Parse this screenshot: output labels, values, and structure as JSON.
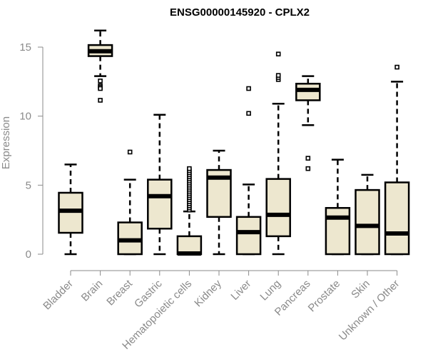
{
  "chart_data": {
    "type": "boxplot",
    "title": "ENSG00000145920 - CPLX2",
    "xlabel": "",
    "ylabel": "Expression",
    "ylim": [
      0,
      16.5
    ],
    "yticks": [
      0,
      5,
      10,
      15
    ],
    "grid": false,
    "legend": "none",
    "box_fill": "#ede7cf",
    "box_stroke": "#000000",
    "categories": [
      "Bladder",
      "Brain",
      "Breast",
      "Gastric",
      "Hematopoietic cells",
      "Kidney",
      "Liver",
      "Lung",
      "Pancreas",
      "Prostate",
      "Skin",
      "Unknown / Other"
    ],
    "boxes": [
      {
        "name": "Bladder",
        "whisker_low": 0,
        "q1": 1.55,
        "median": 3.15,
        "q3": 4.45,
        "whisker_high": 6.5,
        "outliers": []
      },
      {
        "name": "Brain",
        "whisker_low": 12.9,
        "q1": 14.35,
        "median": 14.7,
        "q3": 15.15,
        "whisker_high": 16.2,
        "outliers": [
          12.55,
          12.2,
          12.1,
          12.0,
          11.15
        ]
      },
      {
        "name": "Breast",
        "whisker_low": 0,
        "q1": 0,
        "median": 1.0,
        "q3": 2.3,
        "whisker_high": 5.4,
        "outliers": [
          7.4
        ]
      },
      {
        "name": "Gastric",
        "whisker_low": 0,
        "q1": 1.85,
        "median": 4.2,
        "q3": 5.4,
        "whisker_high": 10.1,
        "outliers": []
      },
      {
        "name": "Hematopoietic cells",
        "whisker_low": 0,
        "q1": 0,
        "median": 0.05,
        "q3": 1.3,
        "whisker_high": 3.1,
        "outliers": [
          3.2,
          3.35,
          3.5,
          3.65,
          3.8,
          3.95,
          4.1,
          4.25,
          4.4,
          4.55,
          4.7,
          4.85,
          5.0,
          5.15,
          5.3,
          5.45,
          5.6,
          5.75,
          5.9,
          6.05,
          6.2
        ]
      },
      {
        "name": "Kidney",
        "whisker_low": 0,
        "q1": 2.7,
        "median": 5.55,
        "q3": 6.1,
        "whisker_high": 7.5,
        "outliers": []
      },
      {
        "name": "Liver",
        "whisker_low": 0,
        "q1": 0,
        "median": 1.6,
        "q3": 2.7,
        "whisker_high": 5.05,
        "outliers": [
          10.2,
          12.0
        ]
      },
      {
        "name": "Lung",
        "whisker_low": 0,
        "q1": 1.3,
        "median": 2.85,
        "q3": 5.45,
        "whisker_high": 10.9,
        "outliers": [
          12.65,
          12.8,
          12.95,
          14.5
        ]
      },
      {
        "name": "Pancreas",
        "whisker_low": 9.35,
        "q1": 11.15,
        "median": 11.9,
        "q3": 12.35,
        "whisker_high": 12.9,
        "outliers": [
          6.95,
          6.2
        ]
      },
      {
        "name": "Prostate",
        "whisker_low": 0,
        "q1": 0,
        "median": 2.65,
        "q3": 3.35,
        "whisker_high": 6.85,
        "outliers": []
      },
      {
        "name": "Skin",
        "whisker_low": 0,
        "q1": 0,
        "median": 2.05,
        "q3": 4.65,
        "whisker_high": 5.75,
        "outliers": []
      },
      {
        "name": "Unknown / Other",
        "whisker_low": 0,
        "q1": 0,
        "median": 1.5,
        "q3": 5.2,
        "whisker_high": 12.5,
        "outliers": [
          13.55
        ]
      }
    ]
  }
}
